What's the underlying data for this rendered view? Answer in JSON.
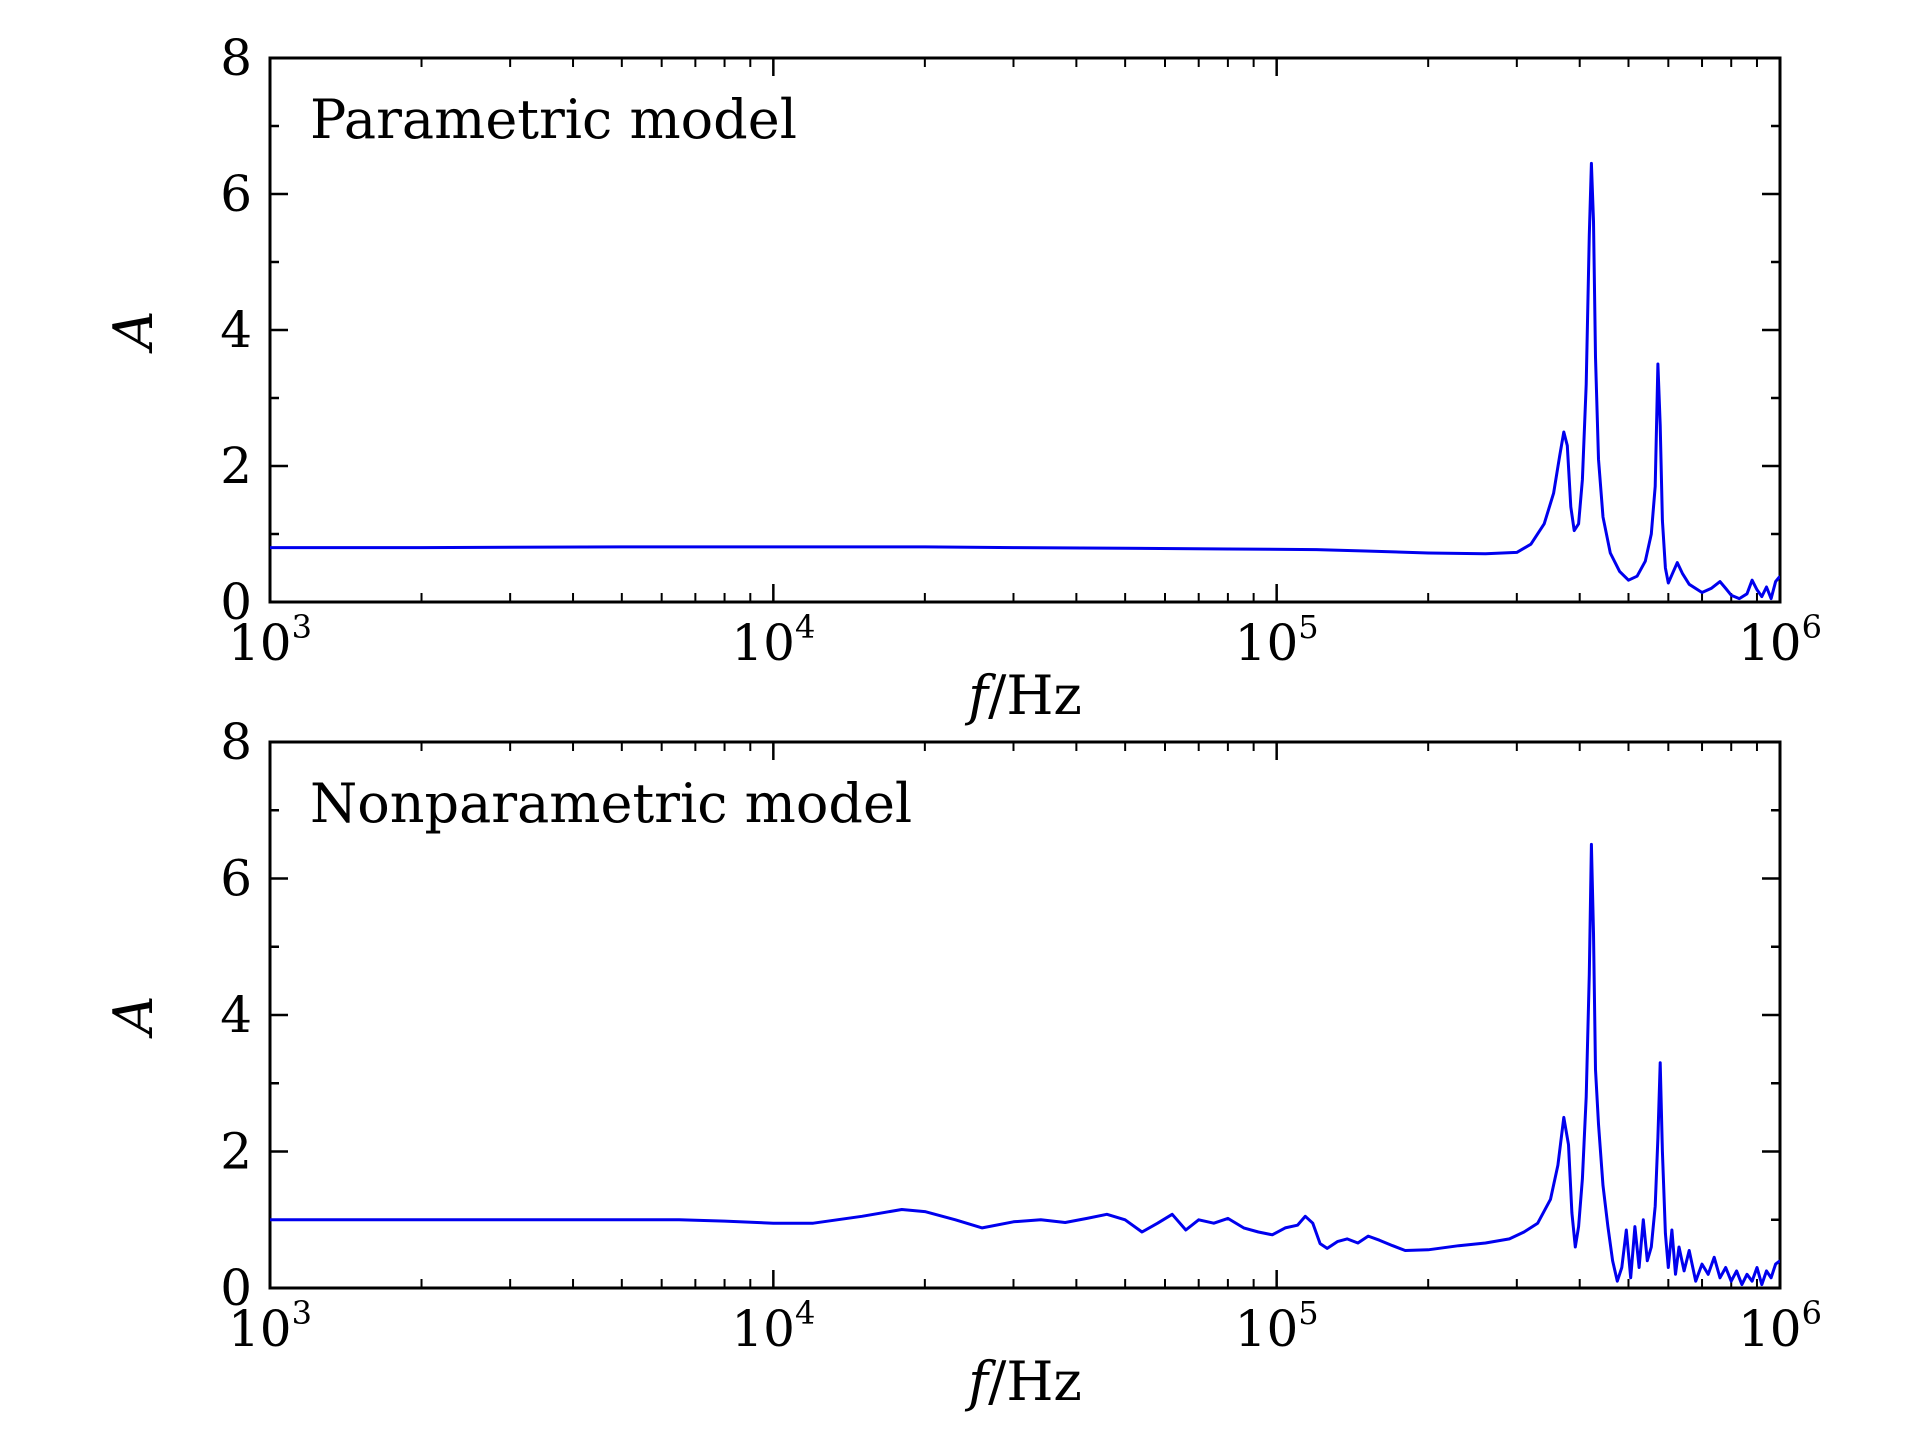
{
  "chart_data": [
    {
      "type": "line",
      "panel_label": "Parametric model",
      "xlabel": {
        "italic": "f",
        "rest": "/Hz"
      },
      "ylabel": "A",
      "xscale": "log",
      "xlim": [
        1000,
        1000000
      ],
      "ylim": [
        0,
        8
      ],
      "xticks": [
        {
          "base": "10",
          "exp": "3"
        },
        {
          "base": "10",
          "exp": "4"
        },
        {
          "base": "10",
          "exp": "5"
        },
        {
          "base": "10",
          "exp": "6"
        }
      ],
      "yticks": [
        "0",
        "2",
        "4",
        "6",
        "8"
      ],
      "line_color": "#0000ee",
      "series": [
        {
          "x": [
            1000,
            2000,
            5000,
            10000,
            20000,
            30000,
            50000,
            80000,
            120000,
            150000,
            200000,
            260000,
            300000,
            320000,
            340000,
            355000,
            365000,
            372000,
            378000,
            384000,
            390000,
            398000,
            405000,
            412000,
            418000,
            422000,
            426000,
            430000,
            436000,
            445000,
            460000,
            480000,
            500000,
            520000,
            540000,
            555000,
            565000,
            572000,
            578000,
            584000,
            592000,
            600000,
            610000,
            625000,
            640000,
            660000,
            700000,
            730000,
            760000,
            780000,
            800000,
            830000,
            860000,
            880000,
            900000,
            920000,
            940000,
            960000,
            980000,
            1000000
          ],
          "y": [
            0.8,
            0.8,
            0.81,
            0.81,
            0.81,
            0.8,
            0.79,
            0.78,
            0.77,
            0.75,
            0.72,
            0.71,
            0.73,
            0.85,
            1.15,
            1.6,
            2.15,
            2.5,
            2.3,
            1.4,
            1.05,
            1.15,
            1.8,
            3.2,
            5.4,
            6.45,
            5.6,
            3.6,
            2.1,
            1.25,
            0.72,
            0.45,
            0.32,
            0.38,
            0.6,
            1.0,
            1.7,
            3.5,
            2.6,
            1.2,
            0.5,
            0.28,
            0.4,
            0.58,
            0.42,
            0.26,
            0.14,
            0.2,
            0.3,
            0.2,
            0.1,
            0.05,
            0.12,
            0.32,
            0.18,
            0.08,
            0.22,
            0.05,
            0.3,
            0.38
          ]
        }
      ]
    },
    {
      "type": "line",
      "panel_label": "Nonparametric model",
      "xlabel": {
        "italic": "f",
        "rest": "/Hz"
      },
      "ylabel": "A",
      "xscale": "log",
      "xlim": [
        1000,
        1000000
      ],
      "ylim": [
        0,
        8
      ],
      "xticks": [
        {
          "base": "10",
          "exp": "3"
        },
        {
          "base": "10",
          "exp": "4"
        },
        {
          "base": "10",
          "exp": "5"
        },
        {
          "base": "10",
          "exp": "6"
        }
      ],
      "yticks": [
        "0",
        "2",
        "4",
        "6",
        "8"
      ],
      "line_color": "#0000ee",
      "series": [
        {
          "x": [
            1000,
            2000,
            4000,
            6500,
            8000,
            10000,
            12000,
            15000,
            18000,
            20000,
            23000,
            26000,
            30000,
            34000,
            38000,
            42000,
            46000,
            50000,
            54000,
            58000,
            62000,
            66000,
            70000,
            75000,
            80000,
            86000,
            92000,
            98000,
            104000,
            110000,
            114000,
            118000,
            122000,
            126000,
            132000,
            138000,
            145000,
            152000,
            160000,
            170000,
            180000,
            200000,
            230000,
            260000,
            290000,
            310000,
            330000,
            350000,
            362000,
            372000,
            380000,
            386000,
            392000,
            398000,
            405000,
            412000,
            418000,
            422000,
            426000,
            430000,
            436000,
            445000,
            455000,
            465000,
            475000,
            485000,
            495000,
            505000,
            515000,
            525000,
            535000,
            545000,
            555000,
            565000,
            572000,
            578000,
            584000,
            592000,
            600000,
            610000,
            620000,
            630000,
            645000,
            660000,
            680000,
            700000,
            720000,
            740000,
            760000,
            780000,
            800000,
            820000,
            840000,
            860000,
            880000,
            900000,
            920000,
            940000,
            960000,
            980000,
            1000000
          ],
          "y": [
            1.0,
            1.0,
            1.0,
            1.0,
            0.98,
            0.95,
            0.95,
            1.05,
            1.15,
            1.12,
            1.0,
            0.88,
            0.97,
            1.0,
            0.96,
            1.02,
            1.08,
            1.0,
            0.82,
            0.95,
            1.08,
            0.85,
            1.0,
            0.95,
            1.02,
            0.88,
            0.82,
            0.78,
            0.88,
            0.92,
            1.05,
            0.95,
            0.65,
            0.58,
            0.68,
            0.72,
            0.66,
            0.76,
            0.7,
            0.62,
            0.55,
            0.56,
            0.62,
            0.66,
            0.72,
            0.82,
            0.95,
            1.3,
            1.8,
            2.5,
            2.1,
            1.1,
            0.6,
            0.9,
            1.6,
            2.8,
            4.6,
            6.5,
            5.2,
            3.2,
            2.4,
            1.5,
            0.9,
            0.4,
            0.1,
            0.3,
            0.85,
            0.15,
            0.9,
            0.3,
            1.0,
            0.4,
            0.6,
            1.2,
            2.2,
            3.3,
            2.0,
            0.8,
            0.3,
            0.85,
            0.2,
            0.6,
            0.25,
            0.55,
            0.1,
            0.35,
            0.2,
            0.45,
            0.15,
            0.3,
            0.1,
            0.25,
            0.05,
            0.2,
            0.1,
            0.3,
            0.05,
            0.25,
            0.15,
            0.35,
            0.4
          ]
        }
      ]
    }
  ]
}
